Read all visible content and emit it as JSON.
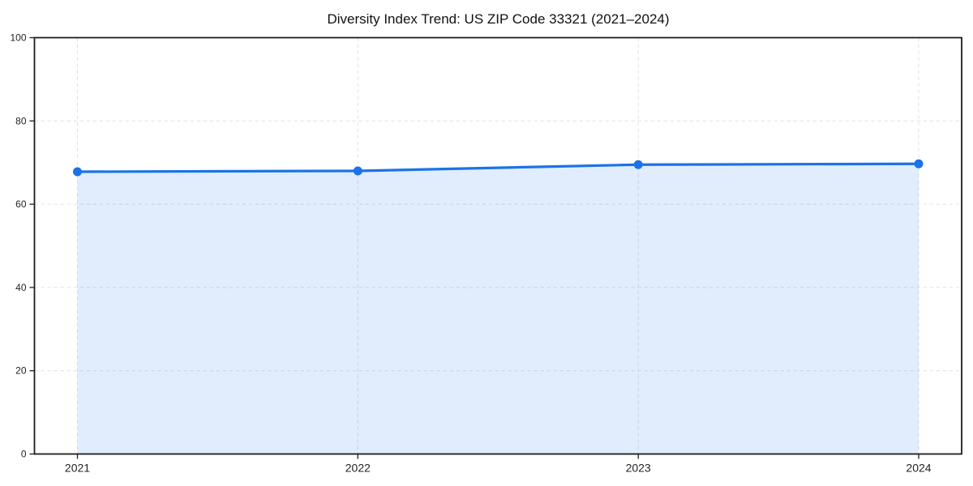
{
  "title": "Diversity Index Trend: US ZIP Code 33321 (2021–2024)",
  "colors": {
    "line": "#1a73e8",
    "marker": "#1a73e8",
    "area_fill": "rgba(26,115,232,0.13)",
    "grid": "#e2e2e2",
    "axis": "#1c1c1c",
    "tick_text": "#222222",
    "title_text": "#111111",
    "background": "#ffffff"
  },
  "chart_data": {
    "type": "area",
    "title": "Diversity Index Trend: US ZIP Code 33321 (2021–2024)",
    "xlabel": "",
    "ylabel": "",
    "x": [
      "2021",
      "2022",
      "2023",
      "2024"
    ],
    "values": [
      67.8,
      68.0,
      69.5,
      69.7
    ],
    "ylim": [
      0,
      100
    ],
    "yticks": [
      0,
      20,
      40,
      60,
      80,
      100
    ],
    "grid": true,
    "grid_style": "dashed",
    "legend": "none",
    "marker": "circle",
    "line_style": "solid"
  }
}
